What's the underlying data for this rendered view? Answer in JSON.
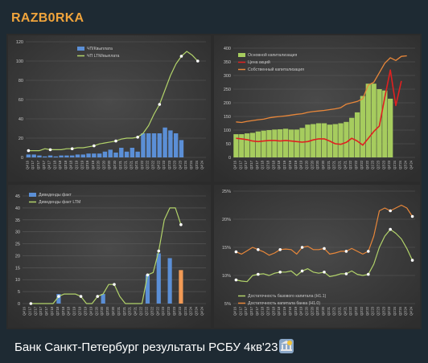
{
  "header": {
    "channel_name": "RAZB0RKA"
  },
  "caption": {
    "text": "Банк Санкт-Петербург результаты РСБУ 4кв'23"
  },
  "icons": {
    "caption_icon": "bank-building-icon"
  },
  "colors": {
    "bar_blue": "#5b8fd6",
    "bar_orange": "#f29a55",
    "line_green": "#b2d36a",
    "bar_green": "#a6cc5e",
    "line_red": "#e02020",
    "line_orange": "#e8873a",
    "text": "#c8c8c8"
  },
  "chart_data": [
    {
      "id": "net-profit",
      "type": "bar",
      "xlabels": [
        "Q4'16",
        "Q1'17",
        "Q2'17",
        "Q3'17",
        "Q4'17",
        "Q1'18",
        "Q2'18",
        "Q3'18",
        "Q4'18",
        "Q1'19",
        "Q2'19",
        "Q3'19",
        "Q4'19",
        "Q1'20",
        "Q2'20",
        "Q3'20",
        "Q4'20",
        "Q1'21",
        "Q2'21",
        "Q3'21",
        "Q4'21",
        "Q1'22",
        "Q2'22",
        "Q3'22",
        "Q4'22",
        "Q1'23",
        "Q2'23",
        "Q3'23",
        "Q4'23",
        "Q1'24",
        "Q2'24",
        "Q3'24",
        "Q4'24"
      ],
      "ylim": [
        0,
        120
      ],
      "yticks": [
        0,
        20,
        40,
        60,
        80,
        100,
        120
      ],
      "legend": [
        "ЧП/Квыплата",
        "ЧП LTM/выплата"
      ],
      "series": [
        {
          "values": [
            3,
            3,
            2,
            1,
            2,
            1,
            2,
            2,
            2,
            3,
            3,
            4,
            4,
            4,
            6,
            8,
            5,
            10,
            6,
            10,
            6,
            25,
            25,
            25,
            25,
            31,
            28,
            25,
            18,
            null,
            null,
            null,
            null
          ]
        },
        {
          "values": [
            7,
            7,
            7,
            9,
            8,
            8,
            8,
            9,
            9,
            10,
            10,
            11,
            12,
            14,
            15,
            16,
            17,
            19,
            20,
            20,
            21,
            25,
            33,
            45,
            55,
            70,
            85,
            97,
            105,
            110,
            106,
            100,
            null
          ]
        }
      ]
    },
    {
      "id": "capital",
      "type": "bar",
      "xlabels": [
        "Q4'16",
        "Q1'17",
        "Q2'17",
        "Q3'17",
        "Q4'17",
        "Q1'18",
        "Q2'18",
        "Q3'18",
        "Q4'18",
        "Q1'19",
        "Q2'19",
        "Q3'19",
        "Q4'19",
        "Q1'20",
        "Q2'20",
        "Q3'20",
        "Q4'20",
        "Q1'21",
        "Q2'21",
        "Q3'21",
        "Q4'21",
        "Q1'22",
        "Q2'22",
        "Q3'22",
        "Q4'22",
        "Q1'23",
        "Q2'23",
        "Q3'23",
        "Q4'23",
        "Q1'24",
        "Q2'24",
        "Q3'24",
        "Q4'24"
      ],
      "ylim": [
        0,
        400
      ],
      "yticks": [
        0,
        50,
        100,
        150,
        200,
        250,
        300,
        350,
        400
      ],
      "legend": [
        "Основной капитализация",
        "Цена акций",
        "Собственный капитализация"
      ],
      "series": [
        {
          "values": [
            85,
            85,
            88,
            90,
            95,
            98,
            100,
            102,
            103,
            105,
            102,
            102,
            108,
            120,
            122,
            125,
            125,
            120,
            122,
            125,
            130,
            145,
            165,
            225,
            270,
            270,
            250,
            245,
            215,
            null,
            null,
            null,
            null
          ]
        },
        {
          "values": [
            70,
            68,
            65,
            60,
            58,
            60,
            62,
            62,
            60,
            62,
            60,
            58,
            56,
            58,
            64,
            68,
            68,
            60,
            50,
            48,
            55,
            70,
            60,
            45,
            70,
            95,
            115,
            220,
            320,
            190,
            280,
            null,
            null
          ]
        },
        {
          "values": [
            130,
            128,
            132,
            135,
            138,
            140,
            145,
            148,
            150,
            152,
            155,
            158,
            160,
            165,
            168,
            170,
            172,
            175,
            178,
            182,
            195,
            200,
            205,
            215,
            265,
            275,
            310,
            345,
            365,
            355,
            370,
            372,
            null
          ]
        }
      ]
    },
    {
      "id": "dividends",
      "type": "bar",
      "xlabels": [
        "Q4'16",
        "Q1'17",
        "Q2'17",
        "Q3'17",
        "Q4'17",
        "Q1'18",
        "Q2'18",
        "Q3'18",
        "Q4'18",
        "Q1'19",
        "Q2'19",
        "Q3'19",
        "Q4'19",
        "Q1'20",
        "Q2'20",
        "Q3'20",
        "Q4'20",
        "Q1'21",
        "Q2'21",
        "Q3'21",
        "Q4'21",
        "Q1'22",
        "Q2'22",
        "Q3'22",
        "Q4'22",
        "Q1'23",
        "Q2'23",
        "Q3'23",
        "Q4'23",
        "Q1'24",
        "Q2'24",
        "Q3'24",
        "Q4'24"
      ],
      "ylim": [
        0,
        45
      ],
      "yticks": [
        0,
        5,
        10,
        15,
        20,
        25,
        30,
        35,
        40,
        45
      ],
      "legend": [
        "Дивиденды факт",
        "Дивиденды факт LTM"
      ],
      "series": [
        {
          "values": [
            null,
            null,
            null,
            null,
            null,
            null,
            4,
            null,
            null,
            null,
            null,
            null,
            null,
            null,
            4,
            null,
            null,
            null,
            null,
            null,
            null,
            null,
            12,
            null,
            21,
            null,
            19,
            null,
            14,
            null,
            null,
            null,
            null
          ],
          "colors": [
            "",
            "",
            "",
            "",
            "",
            "",
            "",
            "",
            "",
            "",
            "",
            "",
            "",
            "",
            "",
            "",
            "",
            "",
            "",
            "",
            "",
            "",
            "",
            "",
            "",
            "",
            "",
            "",
            "orange"
          ]
        },
        {
          "values": [
            null,
            0,
            0,
            0,
            0,
            0,
            3,
            4,
            4,
            4,
            3,
            0,
            0,
            3,
            4,
            8,
            8,
            3,
            0,
            0,
            0,
            0,
            12,
            13,
            22,
            35,
            40,
            40,
            33,
            null,
            null,
            null,
            null
          ]
        }
      ]
    },
    {
      "id": "adequacy",
      "type": "line",
      "xlabels": [
        "Q4'16",
        "Q1'17",
        "Q2'17",
        "Q3'17",
        "Q4'17",
        "Q1'18",
        "Q2'18",
        "Q3'18",
        "Q4'18",
        "Q1'19",
        "Q2'19",
        "Q3'19",
        "Q4'19",
        "Q1'20",
        "Q2'20",
        "Q3'20",
        "Q4'20",
        "Q1'21",
        "Q2'21",
        "Q3'21",
        "Q4'21",
        "Q1'22",
        "Q2'22",
        "Q3'22",
        "Q4'22",
        "Q1'23",
        "Q2'23",
        "Q3'23",
        "Q4'23",
        "Q1'24",
        "Q2'24",
        "Q3'24",
        "Q4'24"
      ],
      "ylim": [
        5,
        25
      ],
      "yticks": [
        "5%",
        "10%",
        "15%",
        "20%",
        "25%"
      ],
      "ytick_values": [
        5,
        10,
        15,
        20,
        25
      ],
      "legend": [
        "Достаточность базового капитала (Н1.1)",
        "Достаточность капитала банка (Н1.0)"
      ],
      "series": [
        {
          "values": [
            9.2,
            9.0,
            8.9,
            10.0,
            10.2,
            10.3,
            10.0,
            10.4,
            10.6,
            10.6,
            10.8,
            10.0,
            10.8,
            11.2,
            10.6,
            10.4,
            10.6,
            9.8,
            10.0,
            10.3,
            10.3,
            10.8,
            10.2,
            10.0,
            10.2,
            12.0,
            15.0,
            17.0,
            18.2,
            17.5,
            16.5,
            14.8,
            12.7
          ]
        },
        {
          "values": [
            14.2,
            13.8,
            14.4,
            15.0,
            14.6,
            14.2,
            13.6,
            14.0,
            14.6,
            14.7,
            14.6,
            13.8,
            15.0,
            15.2,
            14.6,
            14.6,
            14.8,
            13.8,
            14.0,
            14.3,
            14.3,
            14.8,
            14.3,
            13.8,
            14.3,
            17.0,
            21.5,
            22.0,
            21.5,
            22.0,
            22.5,
            22.0,
            20.5
          ]
        }
      ]
    }
  ]
}
